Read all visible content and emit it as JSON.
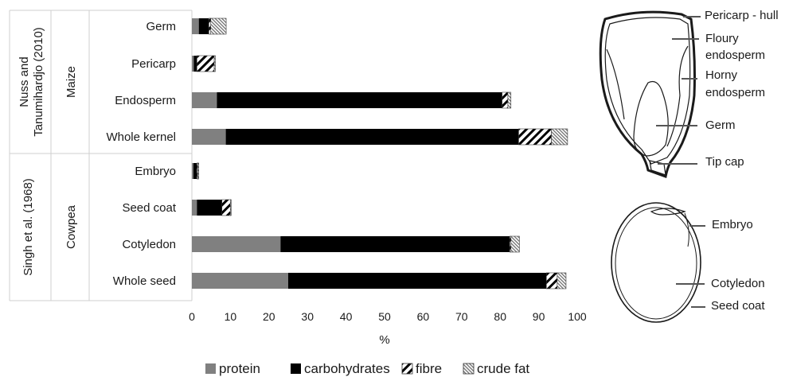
{
  "chart_data": {
    "type": "bar",
    "stacked": true,
    "orientation": "horizontal",
    "xlabel": "%",
    "xlim": [
      0,
      100
    ],
    "xticks": [
      "0",
      "10",
      "20",
      "30",
      "40",
      "50",
      "60",
      "70",
      "80",
      "90",
      "100"
    ],
    "grid": false,
    "legend_position": "bottom",
    "series": [
      {
        "name": "protein",
        "color": "#808080",
        "fill": "solid"
      },
      {
        "name": "carbohydrates",
        "color": "#000000",
        "fill": "solid"
      },
      {
        "name": "fibre",
        "color": "#000000",
        "fill": "wide-diagonal-hatch"
      },
      {
        "name": "crude fat",
        "color": "#666666",
        "fill": "fine-diagonal-hatch"
      }
    ],
    "groups": [
      {
        "source": "Nuss and Tanumihardjo (2010)",
        "crop": "Maize",
        "rows": [
          {
            "label": "Germ",
            "values": [
              1.8,
              2.6,
              0.5,
              4.0
            ]
          },
          {
            "label": "Pericarp",
            "values": [
              0.5,
              0.8,
              4.5,
              0.3
            ]
          },
          {
            "label": "Endosperm",
            "values": [
              6.5,
              74.0,
              1.5,
              0.8
            ]
          },
          {
            "label": "Whole kernel",
            "values": [
              8.8,
              76.0,
              8.5,
              4.2
            ]
          }
        ]
      },
      {
        "source": "Singh et al. (1968)",
        "crop": "Cowpea",
        "rows": [
          {
            "label": "Embryo",
            "values": [
              0.4,
              0.9,
              0.2,
              0.3
            ]
          },
          {
            "label": "Seed coat",
            "values": [
              1.3,
              6.5,
              2.2,
              0.2
            ]
          },
          {
            "label": "Cotyledon",
            "values": [
              23.0,
              59.5,
              0.3,
              2.2
            ]
          },
          {
            "label": "Whole seed",
            "values": [
              25.0,
              67.0,
              2.8,
              2.3
            ]
          }
        ]
      }
    ]
  },
  "diagrams": {
    "maize_labels": [
      "Pericarp - hull",
      "Floury",
      "endosperm",
      "Horny",
      "endosperm",
      "Germ",
      "Tip cap"
    ],
    "cowpea_labels": [
      "Embryo",
      "Cotyledon",
      "Seed coat"
    ]
  }
}
